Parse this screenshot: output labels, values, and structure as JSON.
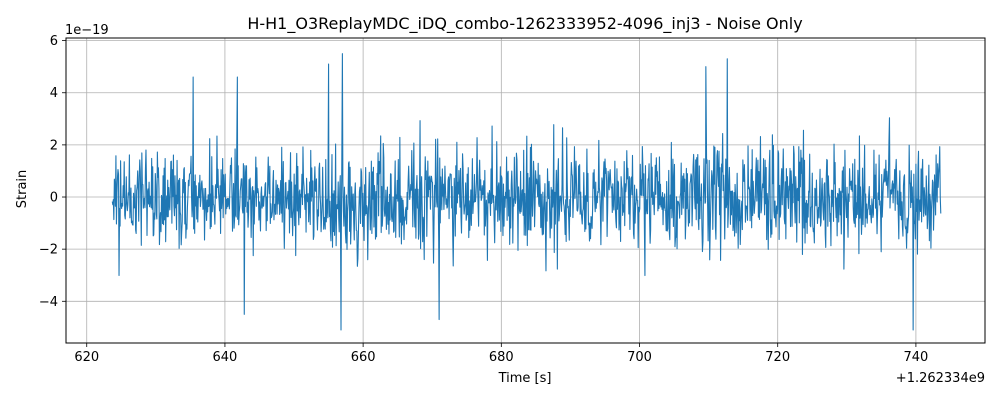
{
  "chart_data": {
    "type": "line",
    "title": "H-H1_O3ReplayMDC_iDQ_combo-1262333952-4096_inj3 - Noise Only",
    "xlabel": "Time [s]",
    "ylabel": "Strain",
    "x_offset_label": "+1.262334e9",
    "y_multiplier_label": "1e−19",
    "xlim": [
      617.0,
      750.0
    ],
    "ylim": [
      -5.6,
      6.1
    ],
    "xticks": [
      620,
      640,
      660,
      680,
      700,
      720,
      740
    ],
    "xtick_labels": [
      "620",
      "640",
      "660",
      "680",
      "700",
      "720",
      "740"
    ],
    "yticks": [
      -4,
      -2,
      0,
      2,
      4,
      6
    ],
    "ytick_labels": [
      "−4",
      "−2",
      "0",
      "2",
      "4",
      "6"
    ],
    "grid": true,
    "color": "#1f77b4",
    "series": [
      {
        "x_start": 623.7,
        "x_end": 743.6,
        "sample_count": 1600,
        "band_half_width_typical": 1.3,
        "peaks": [
          {
            "x": 657.0,
            "y": 5.5
          },
          {
            "x": 655.0,
            "y": 5.1
          },
          {
            "x": 712.7,
            "y": 5.3
          },
          {
            "x": 709.6,
            "y": 5.0
          },
          {
            "x": 635.4,
            "y": 4.6
          },
          {
            "x": 641.8,
            "y": 4.6
          },
          {
            "x": 656.8,
            "y": -5.1
          },
          {
            "x": 739.6,
            "y": -5.1
          },
          {
            "x": 671.0,
            "y": -4.7
          },
          {
            "x": 642.8,
            "y": -4.5
          }
        ]
      }
    ]
  }
}
